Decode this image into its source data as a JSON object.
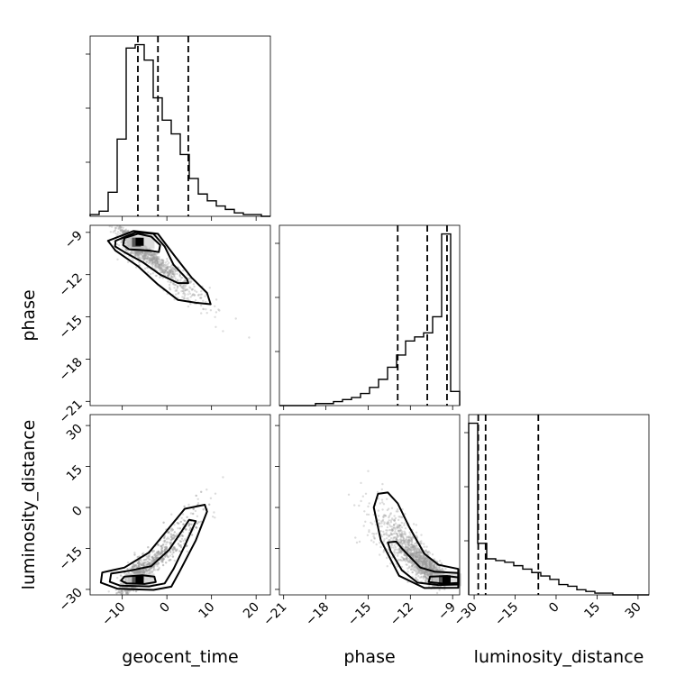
{
  "chart_data": {
    "type": "corner",
    "parameters": [
      {
        "name": "geocent_time",
        "label": "geocent_time",
        "range": [
          -17.2,
          23.2
        ],
        "ticks": [
          -10,
          0,
          10,
          20
        ],
        "tick_labels": [
          "−10",
          "0",
          "10",
          "20"
        ]
      },
      {
        "name": "phase",
        "label": "phase",
        "range": [
          -21.3,
          -8.5
        ],
        "ticks": [
          -21,
          -18,
          -15,
          -12,
          -9
        ],
        "tick_labels": [
          "−21",
          "−18",
          "−15",
          "−12",
          "−9"
        ]
      },
      {
        "name": "luminosity_distance",
        "label": "luminosity_distance",
        "range": [
          -32.0,
          34.0
        ],
        "ticks": [
          -30,
          -15,
          0,
          15,
          30
        ],
        "tick_labels": [
          "−30",
          "−15",
          "0",
          "15",
          "30"
        ]
      }
    ],
    "marginals": [
      {
        "param": "geocent_time",
        "bin_edges": [
          -17.2,
          -15.18,
          -13.16,
          -11.14,
          -9.12,
          -7.1,
          -5.08,
          -3.06,
          -1.04,
          0.98,
          3.0,
          5.02,
          7.04,
          9.06,
          11.08,
          13.1,
          15.12,
          17.14,
          19.16,
          21.18,
          23.2
        ],
        "counts": [
          1,
          3,
          14,
          45,
          98,
          100,
          91,
          69,
          56,
          48,
          36,
          22,
          13,
          9,
          6,
          4,
          2,
          1,
          1,
          0
        ],
        "quantiles": [
          -6.5,
          -2.0,
          4.8
        ],
        "y_ticks": [
          0.3,
          0.6,
          0.9
        ]
      },
      {
        "param": "phase",
        "bin_edges": [
          -21.3,
          -20.66,
          -20.02,
          -19.38,
          -18.74,
          -18.1,
          -17.46,
          -16.82,
          -16.18,
          -15.54,
          -14.9,
          -14.26,
          -13.62,
          -12.98,
          -12.34,
          -11.7,
          -11.06,
          -10.42,
          -9.78,
          -9.14,
          -8.5
        ],
        "counts": [
          0,
          0,
          0,
          0,
          1,
          1,
          2,
          3,
          4,
          6,
          9,
          13,
          19,
          25,
          32,
          34,
          36,
          44,
          85,
          7
        ],
        "quantiles": [
          -12.9,
          -10.8,
          -9.4
        ],
        "y_ticks": [
          0.3,
          0.6,
          0.9
        ]
      },
      {
        "param": "luminosity_distance",
        "bin_edges": [
          -32.0,
          -28.7,
          -25.4,
          -22.1,
          -18.8,
          -15.5,
          -12.2,
          -8.9,
          -5.6,
          -2.3,
          1.0,
          4.3,
          7.6,
          10.9,
          14.2,
          17.5,
          20.8,
          24.1,
          27.4,
          30.7,
          34.0
        ],
        "counts": [
          100,
          30,
          21,
          20,
          19,
          17,
          15,
          13,
          11,
          9,
          6,
          5,
          3,
          2,
          1,
          1,
          0,
          0,
          0,
          0
        ],
        "quantiles": [
          -28.5,
          -25.8,
          -6.5
        ],
        "y_ticks": [
          0.3,
          0.6,
          0.9
        ]
      }
    ],
    "joint": [
      {
        "x": "geocent_time",
        "y": "phase",
        "mode_density": [
          [
            -6.0,
            -9.7
          ]
        ]
      },
      {
        "x": "geocent_time",
        "y": "luminosity_distance",
        "mode_density": [
          [
            -6.0,
            -26.5
          ]
        ]
      },
      {
        "x": "phase",
        "y": "luminosity_distance",
        "mode_density": [
          [
            -9.4,
            -26.5
          ]
        ]
      }
    ],
    "grid": true,
    "xlabel_bottom": [
      "geocent_time",
      "phase",
      "luminosity_distance"
    ],
    "ylabel_left": [
      "phase",
      "luminosity_distance"
    ]
  }
}
